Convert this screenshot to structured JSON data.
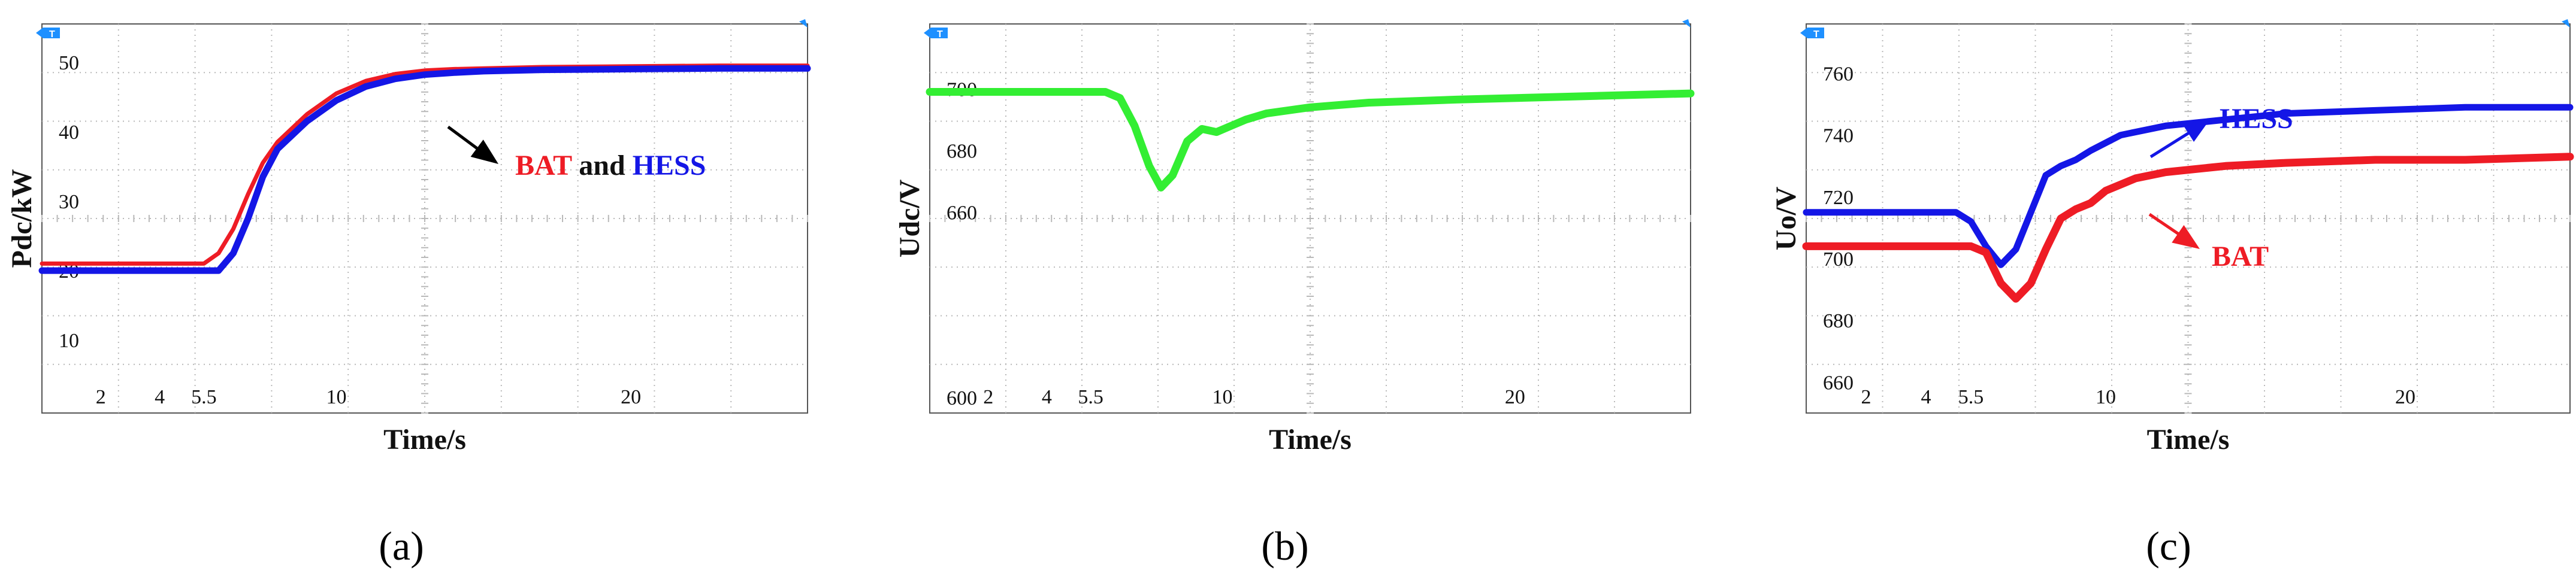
{
  "colors": {
    "bat": "#ee1c25",
    "hess": "#1416e6",
    "udc": "#33ee33",
    "marker": "#1e90ff",
    "grid": "#b9b9b9",
    "frame": "#555555",
    "annotation_text_black": "#111111"
  },
  "chart_data": [
    {
      "type": "line",
      "panel_label": "(a)",
      "xlabel": "Time/s",
      "ylabel": "Pdc/kW",
      "xlim": [
        0,
        26
      ],
      "ylim": [
        -0.5,
        55.5
      ],
      "x_ticks": [
        {
          "value": 2,
          "label": "2"
        },
        {
          "value": 4,
          "label": "4"
        },
        {
          "value": 5.5,
          "label": "5.5"
        },
        {
          "value": 10,
          "label": "10"
        },
        {
          "value": 20,
          "label": "20"
        }
      ],
      "y_ticks": [
        {
          "value": 10,
          "label": "10"
        },
        {
          "value": 20,
          "label": "20"
        },
        {
          "value": 30,
          "label": "30"
        },
        {
          "value": 40,
          "label": "40"
        },
        {
          "value": 50,
          "label": "50"
        }
      ],
      "grid": true,
      "series": [
        {
          "name": "BAT",
          "color_key": "bat",
          "width": 7,
          "x": [
            0,
            5.5,
            6.0,
            6.5,
            7.0,
            7.5,
            8.0,
            9.0,
            10.0,
            11.0,
            12.0,
            13.0,
            14.0,
            15.0,
            17.0,
            20.0,
            23.0,
            26.0
          ],
          "y": [
            21,
            21,
            22.5,
            26,
            31,
            35.5,
            38.5,
            42.5,
            45.5,
            47.3,
            48.3,
            48.8,
            49.0,
            49.1,
            49.3,
            49.4,
            49.5,
            49.5
          ]
        },
        {
          "name": "HESS",
          "color_key": "hess",
          "width": 11,
          "x": [
            0,
            6.0,
            6.5,
            7.0,
            7.5,
            8.0,
            9.0,
            10.0,
            11.0,
            12.0,
            13.0,
            14.0,
            15.0,
            17.0,
            20.0,
            23.0,
            26.0
          ],
          "y": [
            20,
            20,
            22.5,
            27.5,
            33.5,
            37.5,
            41.5,
            44.5,
            46.5,
            47.6,
            48.2,
            48.5,
            48.7,
            48.9,
            49.0,
            49.1,
            49.1
          ]
        }
      ],
      "annotation": {
        "parts": [
          "BAT",
          " and ",
          "HESS"
        ]
      }
    },
    {
      "type": "line",
      "panel_label": "(b)",
      "xlabel": "Time/s",
      "ylabel": "Udc/V",
      "xlim": [
        0,
        26
      ],
      "ylim": [
        595,
        721
      ],
      "x_ticks": [
        {
          "value": 2,
          "label": "2"
        },
        {
          "value": 4,
          "label": "4"
        },
        {
          "value": 5.5,
          "label": "5.5"
        },
        {
          "value": 10,
          "label": "10"
        },
        {
          "value": 20,
          "label": "20"
        }
      ],
      "y_ticks": [
        {
          "value": 600,
          "label": "600"
        },
        {
          "value": 660,
          "label": "660"
        },
        {
          "value": 680,
          "label": "680"
        },
        {
          "value": 700,
          "label": "700"
        }
      ],
      "grid": true,
      "series": [
        {
          "color_key": "udc",
          "width": 13,
          "x": [
            0,
            6.0,
            6.5,
            7.0,
            7.5,
            7.9,
            8.3,
            8.8,
            9.3,
            9.8,
            10.3,
            10.8,
            11.5,
            13.0,
            15.0,
            18.0,
            22.0,
            26.0
          ],
          "y": [
            699,
            699,
            697,
            688,
            675,
            668,
            672,
            683,
            687,
            686,
            688,
            690,
            692,
            694,
            695.5,
            696.5,
            697.5,
            698.5
          ]
        }
      ]
    },
    {
      "type": "line",
      "panel_label": "(c)",
      "xlabel": "Time/s",
      "ylabel": "Uo/V",
      "xlim": [
        0,
        25.5
      ],
      "ylim": [
        650,
        776
      ],
      "x_ticks": [
        {
          "value": 2,
          "label": "2"
        },
        {
          "value": 4,
          "label": "4"
        },
        {
          "value": 5.5,
          "label": "5.5"
        },
        {
          "value": 10,
          "label": "10"
        },
        {
          "value": 20,
          "label": "20"
        }
      ],
      "y_ticks": [
        {
          "value": 660,
          "label": "660"
        },
        {
          "value": 680,
          "label": "680"
        },
        {
          "value": 700,
          "label": "700"
        },
        {
          "value": 720,
          "label": "720"
        },
        {
          "value": 740,
          "label": "740"
        },
        {
          "value": 760,
          "label": "760"
        }
      ],
      "grid": true,
      "series": [
        {
          "name": "HESS",
          "color_key": "hess",
          "width": 11,
          "x": [
            0,
            5.0,
            5.5,
            6.0,
            6.5,
            7.0,
            7.5,
            8.0,
            8.5,
            9.0,
            9.5,
            10.5,
            12.0,
            14.0,
            16.0,
            19.0,
            22.0,
            25.5
          ],
          "y": [
            715,
            715,
            712,
            704,
            698,
            703,
            715,
            727,
            730,
            732,
            735,
            740,
            743,
            745,
            747,
            748,
            749,
            749
          ]
        },
        {
          "name": "BAT",
          "color_key": "bat",
          "width": 13,
          "x": [
            0,
            5.5,
            6.0,
            6.5,
            7.0,
            7.5,
            8.0,
            8.5,
            9.0,
            9.5,
            10.0,
            11.0,
            12.0,
            14.0,
            16.0,
            19.0,
            22.0,
            25.5
          ],
          "y": [
            704,
            704,
            702,
            692,
            687,
            692,
            703,
            713,
            716,
            718,
            722,
            726,
            728,
            730,
            731,
            732,
            732,
            733
          ]
        }
      ],
      "annotations": [
        {
          "text": "HESS",
          "color_key": "hess"
        },
        {
          "text": "BAT",
          "color_key": "bat"
        }
      ]
    }
  ]
}
